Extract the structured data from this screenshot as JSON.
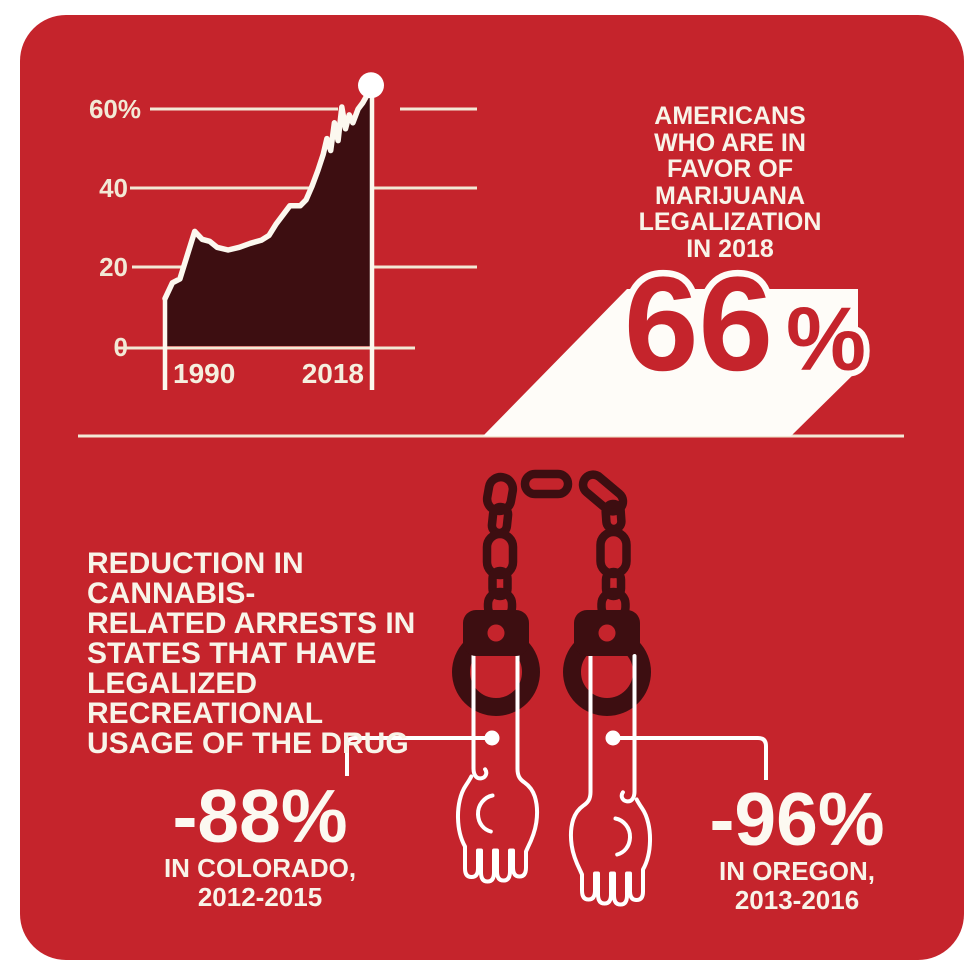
{
  "page": {
    "background": "#ffffff",
    "card_color": "#c5242c",
    "dark_color": "#3d0e11",
    "grid_color": "#f2e9d6",
    "text_color": "#f8f4e9"
  },
  "chart_data": {
    "type": "area",
    "x": [
      1990,
      1991,
      1992,
      1994,
      1995,
      1996,
      1997,
      1998.5,
      2000,
      2001.5,
      2003,
      2004,
      2005,
      2006,
      2006.8,
      2008.2,
      2009,
      2009.8,
      2010.6,
      2011.3,
      2011.8,
      2012.3,
      2012.8,
      2013.3,
      2013.8,
      2014.3,
      2014.8,
      2015.3,
      2016,
      2016.6,
      2017.2,
      2018
    ],
    "y": [
      12,
      16,
      17,
      29,
      27,
      26.5,
      25,
      24.3,
      25,
      26,
      26.8,
      28,
      31,
      33.5,
      35.5,
      35.5,
      37,
      40.5,
      44.5,
      48.5,
      52.5,
      49.5,
      56.5,
      52,
      60.5,
      55,
      58.5,
      56.5,
      60,
      61.5,
      63.5,
      66
    ],
    "x_range": [
      1990,
      2018
    ],
    "y_range": [
      0,
      70
    ],
    "y_ticks": [
      {
        "value": 60,
        "label": "60%"
      },
      {
        "value": 40,
        "label": "40"
      },
      {
        "value": 20,
        "label": "20"
      },
      {
        "value": 0,
        "label": "0"
      }
    ],
    "x_ticks": [
      {
        "value": 1990,
        "label": "1990"
      },
      {
        "value": 2018,
        "label": "2018"
      }
    ],
    "end_dot_value": 66,
    "grid": true,
    "legend": false,
    "fill_color": "#3d0e11",
    "stroke_color": "#fcf8ef",
    "grid_color": "#f2e9d6"
  },
  "favor_callout": {
    "label": "AMERICANS\nWHO ARE IN\nFAVOR OF\nMARIJUANA\nLEGALIZATION\nIN 2018",
    "value": "66",
    "percent_sign": "%"
  },
  "arrests_section": {
    "label": "REDUCTION IN CANNABIS-\nRELATED ARRESTS IN\nSTATES THAT HAVE\nLEGALIZED RECREATIONAL\nUSAGE OF THE DRUG",
    "stats": [
      {
        "value": "-88%",
        "caption": "IN COLORADO,\n2012-2015"
      },
      {
        "value": "-96%",
        "caption": "IN OREGON,\n2013-2016"
      }
    ]
  },
  "icons": {
    "handcuffs": "handcuffs-chain",
    "hands": "cuffed-hands"
  }
}
